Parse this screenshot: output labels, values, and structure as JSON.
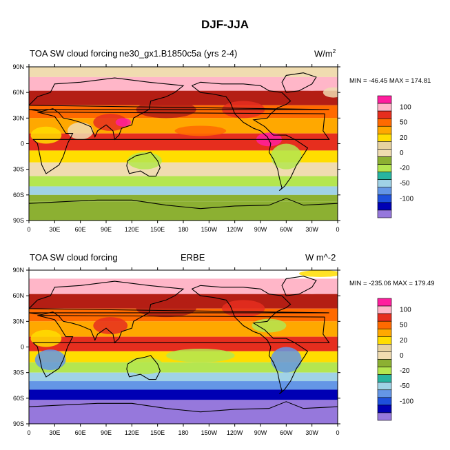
{
  "page_title": "DJF-JJA",
  "chart_data": [
    {
      "type": "heatmap",
      "subtype": "filled-contour world map",
      "title_left": "TOA SW cloud forcing",
      "title_center": "ne30_gx1.B1850c5a (yrs 2-4)",
      "title_right": "W/m",
      "title_right_sup": "2",
      "stats": "MIN = -46.45 MAX = 174.81",
      "xlim": [
        0,
        360
      ],
      "ylim": [
        -90,
        90
      ],
      "x_ticks": [
        "0",
        "30E",
        "60E",
        "90E",
        "120E",
        "150E",
        "180",
        "150W",
        "120W",
        "90W",
        "60W",
        "30W",
        "0"
      ],
      "y_ticks": [
        "90N",
        "60N",
        "30N",
        "0",
        "30S",
        "60S",
        "90S"
      ],
      "min": -46.45,
      "max": 174.81
    },
    {
      "type": "heatmap",
      "subtype": "filled-contour world map",
      "title_left": "TOA SW cloud forcing",
      "title_center": "ERBE",
      "title_right": "W m^-2",
      "title_right_sup": "",
      "stats": "MIN = -235.06 MAX = 179.49",
      "xlim": [
        0,
        360
      ],
      "ylim": [
        -90,
        90
      ],
      "x_ticks": [
        "0",
        "30E",
        "60E",
        "90E",
        "120E",
        "150E",
        "180",
        "150W",
        "120W",
        "90W",
        "60W",
        "30W",
        "0"
      ],
      "y_ticks": [
        "90N",
        "60N",
        "30N",
        "0",
        "30S",
        "60S",
        "90S"
      ],
      "min": -235.06,
      "max": 179.49
    }
  ],
  "colorbar": {
    "labels": [
      "100",
      "50",
      "20",
      "0",
      "-20",
      "-50",
      "-100"
    ],
    "colors": [
      "#ff1e9e",
      "#ffb6c8",
      "#e62e1e",
      "#ff6a00",
      "#ffa800",
      "#ffdd00",
      "#e6d2a0",
      "#f0dcb0",
      "#8cb032",
      "#b4e650",
      "#28b4a0",
      "#a0d2e6",
      "#6496e6",
      "#1e50dc",
      "#0000b4",
      "#9678dc"
    ]
  },
  "colors": {
    "ocean_mid": "#ffa800",
    "ocean_high": "#b41e14",
    "arctic": "#ffb6c8",
    "subtropic": "#f0dcb0",
    "southern": "#8cb032",
    "deep_south": "#9678dc",
    "coast": "#000000"
  }
}
